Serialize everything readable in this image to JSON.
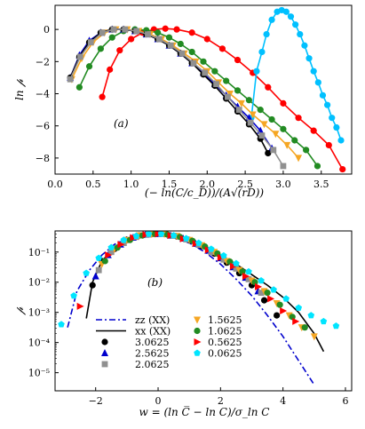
{
  "chart_data": [
    {
      "type": "line",
      "panel_label": "(a)",
      "xlabel": "(− ln(C/c_D))/(A√(rD))",
      "ylabel": "ln 𝓅",
      "xlim": [
        0.0,
        3.9
      ],
      "ylim": [
        -9.0,
        1.5
      ],
      "xticks": [
        "0.0",
        "0.5",
        "1.0",
        "1.5",
        "2.0",
        "2.5",
        "3.0",
        "3.5"
      ],
      "yticks": [
        "0",
        "−2",
        "−4",
        "−6",
        "−8"
      ],
      "series": [
        {
          "color": "#ff0000",
          "marker": "circle",
          "x": [
            0.62,
            0.72,
            0.85,
            1.0,
            1.15,
            1.3,
            1.45,
            1.6,
            1.8,
            2.0,
            2.2,
            2.4,
            2.6,
            2.8,
            3.0,
            3.2,
            3.4,
            3.6,
            3.78
          ],
          "y": [
            -4.2,
            -2.5,
            -1.3,
            -0.6,
            -0.2,
            0.0,
            0.05,
            0.0,
            -0.2,
            -0.6,
            -1.2,
            -1.9,
            -2.7,
            -3.6,
            -4.6,
            -5.5,
            -6.3,
            -7.2,
            -8.7
          ]
        },
        {
          "color": "#228b22",
          "marker": "circle",
          "x": [
            0.32,
            0.45,
            0.6,
            0.75,
            0.9,
            1.05,
            1.2,
            1.35,
            1.5,
            1.65,
            1.8,
            1.95,
            2.1,
            2.25,
            2.4,
            2.55,
            2.7,
            2.85,
            3.0,
            3.15,
            3.3,
            3.45
          ],
          "y": [
            -3.6,
            -2.3,
            -1.2,
            -0.5,
            -0.1,
            0.0,
            -0.05,
            -0.2,
            -0.5,
            -0.9,
            -1.4,
            -2.0,
            -2.6,
            -3.2,
            -3.8,
            -4.4,
            -5.0,
            -5.6,
            -6.2,
            -6.9,
            -7.5,
            -8.5
          ]
        },
        {
          "color": "#00c0ff",
          "marker": "circle",
          "x": [
            2.58,
            2.65,
            2.72,
            2.78,
            2.85,
            2.92,
            2.98,
            3.04,
            3.1,
            3.16,
            3.22,
            3.28,
            3.34,
            3.4,
            3.46,
            3.52,
            3.58,
            3.64,
            3.7,
            3.76
          ],
          "y": [
            -5.5,
            -2.6,
            -1.4,
            -0.3,
            0.6,
            1.1,
            1.2,
            1.1,
            0.8,
            0.3,
            -0.3,
            -1.0,
            -1.8,
            -2.6,
            -3.3,
            -4.1,
            -4.7,
            -5.5,
            -6.1,
            -6.9
          ]
        },
        {
          "color": "#f5a623",
          "marker": "triangle-down",
          "x": [
            0.22,
            0.35,
            0.5,
            0.65,
            0.8,
            0.95,
            1.1,
            1.25,
            1.4,
            1.55,
            1.7,
            1.85,
            2.0,
            2.15,
            2.3,
            2.45,
            2.6,
            2.75,
            2.9,
            3.05,
            3.2
          ],
          "y": [
            -3.1,
            -1.8,
            -0.8,
            -0.2,
            0.0,
            0.0,
            -0.1,
            -0.3,
            -0.6,
            -1.0,
            -1.5,
            -2.0,
            -2.6,
            -3.3,
            -4.0,
            -4.6,
            -5.3,
            -5.9,
            -6.5,
            -7.2,
            -8.0
          ]
        },
        {
          "color": "#0000cd",
          "marker": "triangle-up",
          "x": [
            0.2,
            0.32,
            0.45,
            0.6,
            0.75,
            0.9,
            1.05,
            1.2,
            1.35,
            1.5,
            1.65,
            1.8,
            1.95,
            2.1,
            2.25,
            2.4,
            2.55,
            2.7,
            2.85
          ],
          "y": [
            -3.0,
            -1.6,
            -0.7,
            -0.2,
            0.0,
            0.0,
            -0.1,
            -0.3,
            -0.6,
            -1.0,
            -1.5,
            -2.1,
            -2.7,
            -3.4,
            -4.1,
            -4.8,
            -5.5,
            -6.3,
            -7.4
          ]
        },
        {
          "color": "#000000",
          "marker": "circle",
          "x": [
            0.2,
            0.32,
            0.45,
            0.6,
            0.75,
            0.9,
            1.05,
            1.2,
            1.35,
            1.5,
            1.65,
            1.8,
            1.95,
            2.1,
            2.25,
            2.4,
            2.55,
            2.7,
            2.8
          ],
          "y": [
            -3.0,
            -1.7,
            -0.8,
            -0.2,
            0.0,
            0.0,
            -0.1,
            -0.3,
            -0.6,
            -1.0,
            -1.5,
            -2.1,
            -2.8,
            -3.5,
            -4.3,
            -5.1,
            -5.9,
            -6.8,
            -7.7
          ]
        },
        {
          "color": "#909090",
          "marker": "square",
          "x": [
            0.2,
            0.33,
            0.47,
            0.62,
            0.77,
            0.92,
            1.07,
            1.22,
            1.37,
            1.52,
            1.67,
            1.82,
            1.97,
            2.12,
            2.27,
            2.42,
            2.57,
            2.72,
            2.87,
            3.0
          ],
          "y": [
            -3.1,
            -1.7,
            -0.8,
            -0.2,
            0.0,
            0.0,
            -0.1,
            -0.3,
            -0.6,
            -1.0,
            -1.5,
            -2.1,
            -2.7,
            -3.4,
            -4.2,
            -5.0,
            -5.8,
            -6.6,
            -7.5,
            -8.5
          ]
        }
      ]
    },
    {
      "type": "line",
      "panel_label": "(b)",
      "xlabel": "w = (ln C̅ − ln C)/σ_ln C",
      "ylabel": "𝓅",
      "yscale": "log",
      "xlim": [
        -3.3,
        6.2
      ],
      "ylim_log10": [
        -5.6,
        -0.3
      ],
      "xticks": [
        "−2",
        "0",
        "2",
        "4",
        "6"
      ],
      "xtick_values": [
        -2,
        0,
        2,
        4,
        6
      ],
      "yticks": [
        "10⁻¹",
        "10⁻²",
        "10⁻³",
        "10⁻⁴",
        "10⁻⁵"
      ],
      "ytick_values": [
        -1,
        -2,
        -3,
        -4,
        -5
      ],
      "legend": {
        "placement": "lower-left",
        "col1": [
          {
            "label": "zz (XX)",
            "style": "dashdot",
            "color": "#0000cd"
          },
          {
            "label": "xx (XX)",
            "style": "solid",
            "color": "#000000"
          },
          {
            "label": "3.0625",
            "marker": "circle",
            "color": "#000000"
          },
          {
            "label": "2.5625",
            "marker": "triangle-up",
            "color": "#0000cd"
          },
          {
            "label": "2.0625",
            "marker": "square",
            "color": "#909090"
          }
        ],
        "col2": [
          {
            "label": "1.5625",
            "marker": "triangle-down",
            "color": "#f5a623"
          },
          {
            "label": "1.0625",
            "marker": "circle",
            "color": "#228b22"
          },
          {
            "label": "0.5625",
            "marker": "triangle-right",
            "color": "#ff0000"
          },
          {
            "label": "0.0625",
            "marker": "pentagon",
            "color": "#00e5ff"
          }
        ]
      },
      "lines": [
        {
          "name": "zz",
          "style": "dashdot",
          "color": "#0000cd",
          "x": [
            -2.9,
            -2.6,
            -2.2,
            -1.8,
            -1.4,
            -1.0,
            -0.5,
            0.0,
            0.5,
            1.0,
            1.5,
            2.0,
            2.5,
            3.0,
            3.5,
            4.0,
            4.5,
            5.0
          ],
          "y": [
            -3.5,
            -2.3,
            -1.6,
            -1.1,
            -0.75,
            -0.5,
            -0.38,
            -0.4,
            -0.5,
            -0.7,
            -1.0,
            -1.4,
            -1.9,
            -2.45,
            -3.1,
            -3.8,
            -4.6,
            -5.4
          ]
        },
        {
          "name": "xx",
          "style": "solid",
          "color": "#000000",
          "x": [
            -2.3,
            -2.1,
            -1.8,
            -1.4,
            -1.0,
            -0.5,
            0.0,
            0.5,
            1.0,
            1.5,
            2.0,
            2.5,
            3.0,
            3.5,
            4.0,
            4.5,
            5.0,
            5.3
          ],
          "y": [
            -3.2,
            -2.0,
            -1.3,
            -0.85,
            -0.55,
            -0.4,
            -0.4,
            -0.48,
            -0.62,
            -0.85,
            -1.1,
            -1.4,
            -1.75,
            -2.1,
            -2.5,
            -3.0,
            -3.7,
            -4.3
          ]
        }
      ],
      "series": [
        {
          "color": "#000000",
          "marker": "circle",
          "x": [
            -2.1,
            -1.8,
            -1.4,
            -1.0,
            -0.6,
            -0.2,
            0.2,
            0.6,
            1.0,
            1.4,
            1.8,
            2.2,
            2.6,
            3.0,
            3.4,
            3.8
          ],
          "y": [
            -2.1,
            -1.3,
            -0.9,
            -0.6,
            -0.45,
            -0.4,
            -0.4,
            -0.48,
            -0.6,
            -0.8,
            -1.05,
            -1.35,
            -1.7,
            -2.1,
            -2.6,
            -3.1
          ]
        },
        {
          "color": "#0000cd",
          "marker": "triangle-up",
          "x": [
            -2.0,
            -1.6,
            -1.2,
            -0.8,
            -0.4,
            0.0,
            0.4,
            0.8,
            1.2,
            1.6,
            2.0,
            2.4,
            2.8,
            3.2
          ],
          "y": [
            -1.8,
            -1.1,
            -0.75,
            -0.52,
            -0.42,
            -0.4,
            -0.45,
            -0.55,
            -0.72,
            -0.95,
            -1.2,
            -1.5,
            -1.85,
            -2.3
          ]
        },
        {
          "color": "#909090",
          "marker": "square",
          "x": [
            -1.9,
            -1.5,
            -1.1,
            -0.7,
            -0.3,
            0.1,
            0.5,
            0.9,
            1.3,
            1.7,
            2.1,
            2.5,
            2.9,
            3.3
          ],
          "y": [
            -1.6,
            -1.0,
            -0.7,
            -0.5,
            -0.42,
            -0.4,
            -0.46,
            -0.58,
            -0.76,
            -1.0,
            -1.25,
            -1.55,
            -1.9,
            -2.35
          ]
        },
        {
          "color": "#f5a623",
          "marker": "triangle-down",
          "x": [
            -1.8,
            -1.4,
            -1.0,
            -0.6,
            -0.2,
            0.2,
            0.6,
            1.0,
            1.4,
            1.8,
            2.2,
            2.6,
            3.0,
            3.4,
            3.8,
            4.2,
            4.6,
            5.0
          ],
          "y": [
            -1.4,
            -0.9,
            -0.6,
            -0.45,
            -0.4,
            -0.4,
            -0.47,
            -0.6,
            -0.78,
            -1.0,
            -1.3,
            -1.6,
            -1.95,
            -2.3,
            -2.7,
            -3.1,
            -3.5,
            -3.8
          ]
        },
        {
          "color": "#228b22",
          "marker": "circle",
          "x": [
            -1.7,
            -1.3,
            -0.9,
            -0.5,
            -0.1,
            0.3,
            0.7,
            1.1,
            1.5,
            1.9,
            2.3,
            2.7,
            3.1,
            3.5,
            3.9,
            4.3,
            4.7
          ],
          "y": [
            -1.3,
            -0.85,
            -0.6,
            -0.45,
            -0.4,
            -0.42,
            -0.5,
            -0.63,
            -0.82,
            -1.05,
            -1.32,
            -1.65,
            -2.0,
            -2.35,
            -2.75,
            -3.15,
            -3.5
          ]
        },
        {
          "color": "#ff0000",
          "marker": "triangle-right",
          "x": [
            -2.5,
            -1.6,
            -1.2,
            -0.8,
            -0.4,
            0.0,
            0.4,
            0.8,
            1.2,
            1.6,
            2.0,
            2.4,
            2.8,
            3.2,
            3.6,
            4.0,
            4.4
          ],
          "y": [
            -2.8,
            -1.1,
            -0.75,
            -0.52,
            -0.42,
            -0.4,
            -0.45,
            -0.56,
            -0.72,
            -0.93,
            -1.18,
            -1.47,
            -1.8,
            -2.15,
            -2.55,
            -2.95,
            -3.3
          ]
        },
        {
          "color": "#00e5ff",
          "marker": "pentagon",
          "x": [
            -3.1,
            -2.7,
            -2.3,
            -1.9,
            -1.5,
            -1.1,
            -0.7,
            -0.3,
            0.1,
            0.5,
            0.9,
            1.3,
            1.7,
            2.1,
            2.5,
            2.9,
            3.3,
            3.7,
            4.1,
            4.5,
            4.9,
            5.3,
            5.7
          ],
          "y": [
            -3.4,
            -2.45,
            -1.7,
            -1.2,
            -0.85,
            -0.6,
            -0.47,
            -0.4,
            -0.4,
            -0.45,
            -0.55,
            -0.7,
            -0.9,
            -1.12,
            -1.38,
            -1.65,
            -1.95,
            -2.25,
            -2.55,
            -2.85,
            -3.1,
            -3.3,
            -3.45
          ]
        }
      ]
    }
  ]
}
